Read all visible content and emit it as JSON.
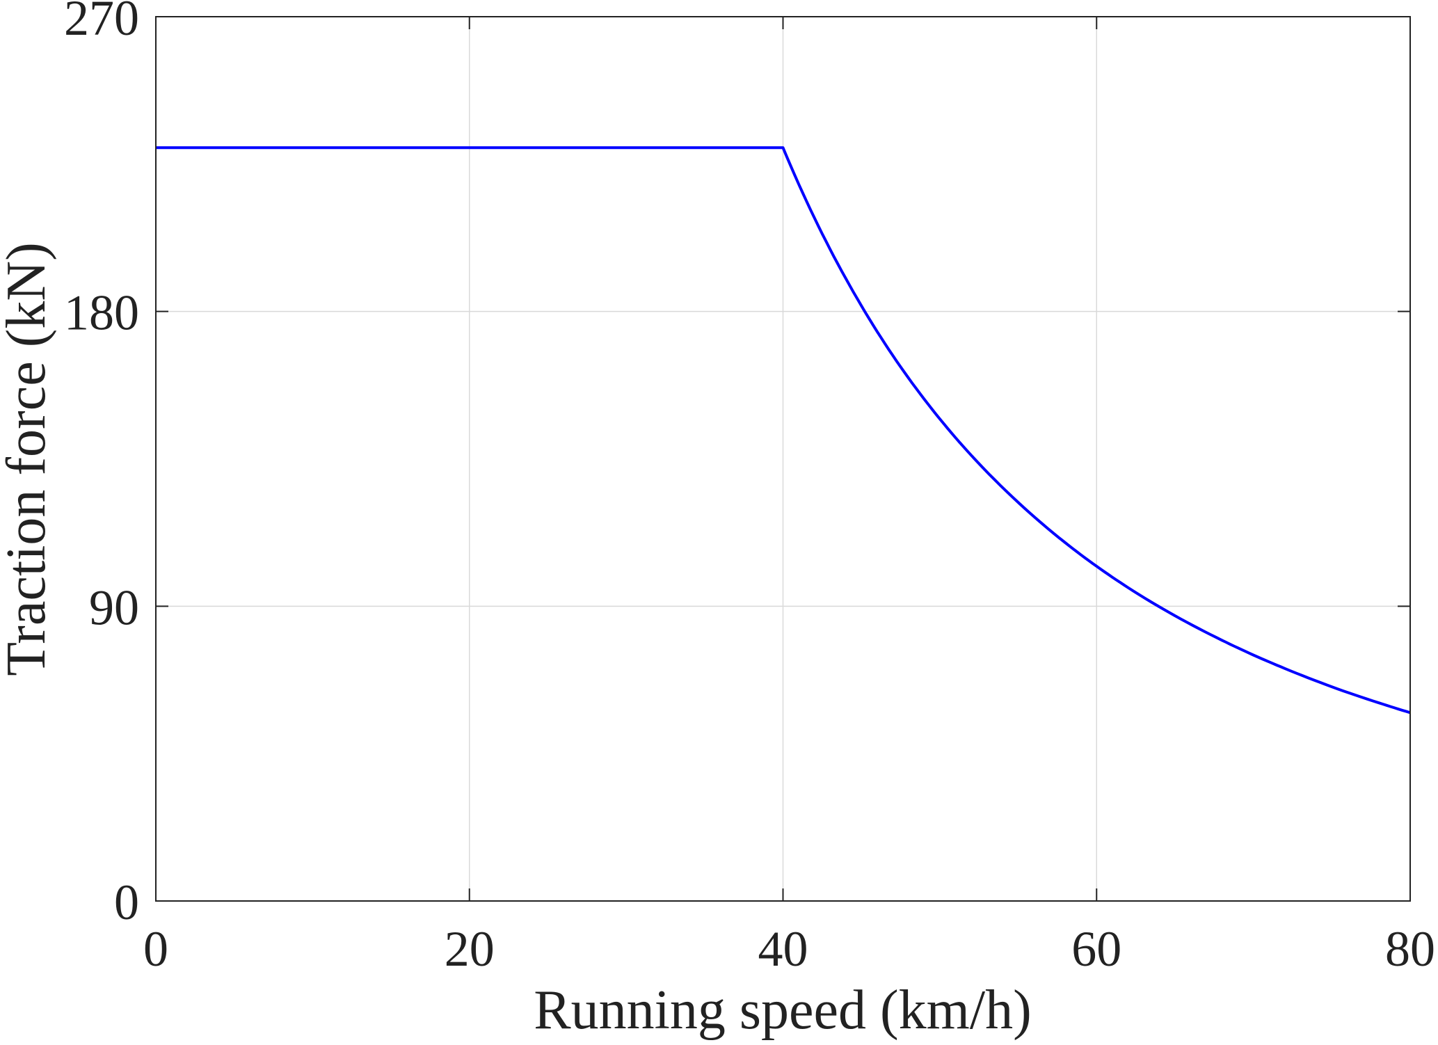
{
  "chart_data": {
    "type": "line",
    "title": "",
    "xlabel": "Running speed (km/h)",
    "ylabel": "Traction force (kN)",
    "xlim": [
      0,
      80
    ],
    "ylim": [
      0,
      270
    ],
    "xticks": [
      0,
      20,
      40,
      60,
      80
    ],
    "yticks": [
      0,
      90,
      180,
      270
    ],
    "xtick_labels": [
      "0",
      "20",
      "40",
      "60",
      "80"
    ],
    "ytick_labels": [
      "0",
      "90",
      "180",
      "270"
    ],
    "grid": true,
    "series": [
      {
        "name": "Traction force",
        "color": "#0000ff",
        "x": [
          0,
          10,
          20,
          30,
          40,
          42,
          44,
          46,
          48,
          50,
          52,
          55,
          58,
          60,
          62,
          65,
          68,
          70,
          72,
          75,
          78,
          80
        ],
        "y": [
          230,
          230,
          230,
          230,
          230,
          208.6,
          190.1,
          173.9,
          159.7,
          147.2,
          136.1,
          121.7,
          109.4,
          102.2,
          95.7,
          87.1,
          79.6,
          75.1,
          71.0,
          65.4,
          60.5,
          57.5
        ]
      }
    ]
  }
}
